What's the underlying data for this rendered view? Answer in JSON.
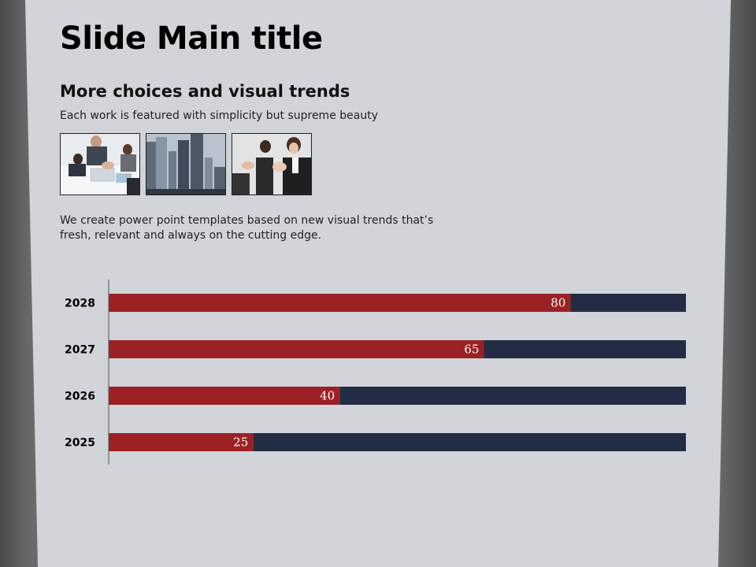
{
  "slide": {
    "title": "Slide Main title",
    "subtitle": "More choices and visual trends",
    "tagline": "Each work is featured with simplicity but supreme beauty",
    "body": "We create power point templates based on new visual trends that’s fresh, relevant and always on the cutting edge."
  },
  "photos": [
    "business-team-photo",
    "city-skyscrapers-photo",
    "applauding-audience-photo"
  ],
  "colors": {
    "primary_bar": "#9b2124",
    "remainder_bar": "#222c44",
    "background": "#d1d4d8"
  },
  "chart_data": {
    "type": "bar",
    "orientation": "horizontal",
    "stacked_to_total": 100,
    "categories": [
      "2028",
      "2027",
      "2026",
      "2025"
    ],
    "values": [
      80,
      65,
      40,
      25
    ],
    "xlim": [
      0,
      100
    ],
    "data_labels": true,
    "grid": false,
    "legend": "none"
  }
}
